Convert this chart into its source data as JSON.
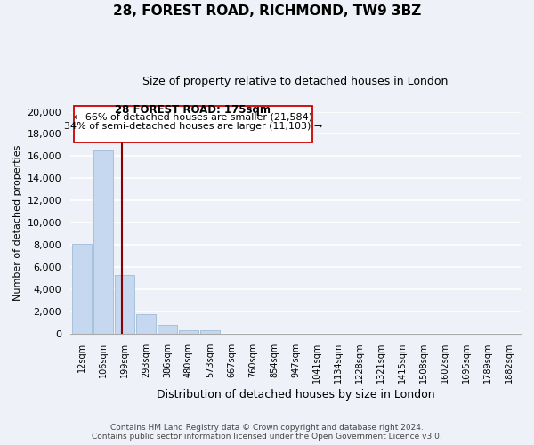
{
  "title": "28, FOREST ROAD, RICHMOND, TW9 3BZ",
  "subtitle": "Size of property relative to detached houses in London",
  "xlabel": "Distribution of detached houses by size in London",
  "ylabel": "Number of detached properties",
  "bin_labels": [
    "12sqm",
    "106sqm",
    "199sqm",
    "293sqm",
    "386sqm",
    "480sqm",
    "573sqm",
    "667sqm",
    "760sqm",
    "854sqm",
    "947sqm",
    "1041sqm",
    "1134sqm",
    "1228sqm",
    "1321sqm",
    "1415sqm",
    "1508sqm",
    "1602sqm",
    "1695sqm",
    "1789sqm",
    "1882sqm"
  ],
  "bar_values": [
    8100,
    16500,
    5300,
    1750,
    750,
    300,
    300,
    0,
    0,
    0,
    0,
    0,
    0,
    0,
    0,
    0,
    0,
    0,
    0,
    0,
    0
  ],
  "bar_color": "#c5d8f0",
  "bar_edge_color": "#a0bcd8",
  "vline_x_index": 1.87,
  "vline_color": "#8b0000",
  "ann_line1": "28 FOREST ROAD: 175sqm",
  "ann_line2": "← 66% of detached houses are smaller (21,584)",
  "ann_line3": "34% of semi-detached houses are larger (11,103) →",
  "ylim": [
    0,
    20000
  ],
  "yticks": [
    0,
    2000,
    4000,
    6000,
    8000,
    10000,
    12000,
    14000,
    16000,
    18000,
    20000
  ],
  "footer_line1": "Contains HM Land Registry data © Crown copyright and database right 2024.",
  "footer_line2": "Contains public sector information licensed under the Open Government Licence v3.0.",
  "bg_color": "#eef2f8"
}
